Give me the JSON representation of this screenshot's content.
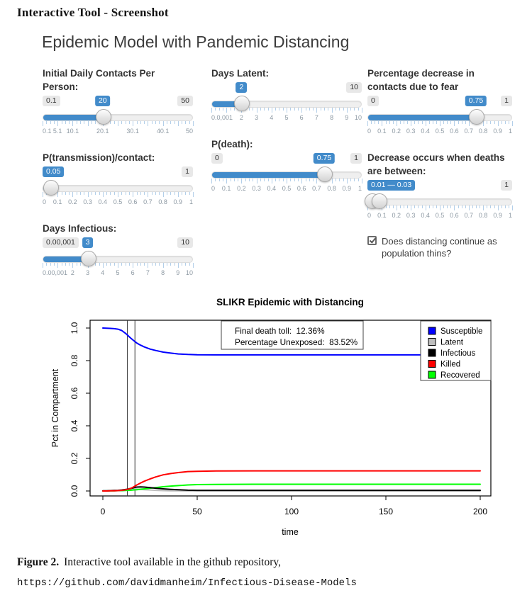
{
  "page": {
    "heading": "Interactive Tool - Screenshot",
    "caption": {
      "label": "Figure 2.",
      "text": "Interactive tool available in the github repository,",
      "url": "https://github.com/davidmanheim/Infectious-Disease-Models"
    }
  },
  "app": {
    "title": "Epidemic Model with Pandemic Distancing",
    "accent_color": "#428bca",
    "columns": [
      {
        "controls": [
          {
            "id": "initial-contacts",
            "type": "slider",
            "label": "Initial Daily Contacts Per Person:",
            "min_badge": "0.1",
            "max_badge": "50",
            "value_badge": "20",
            "value_pct": 40,
            "fill": [
              0,
              40
            ],
            "handles": [
              40
            ],
            "tick_labels": [
              [
                "0.1",
                0
              ],
              [
                "5.1",
                10
              ],
              [
                "10.1",
                20
              ],
              [
                "20.1",
                40
              ],
              [
                "30.1",
                60
              ],
              [
                "40.1",
                80
              ],
              [
                "50",
                100
              ]
            ]
          },
          {
            "id": "p-transmission",
            "type": "slider",
            "label": "P(transmission)/contact:",
            "min_badge": null,
            "max_badge": "1",
            "value_badge": "0.05",
            "value_pct": 5,
            "fill": [
              0,
              5
            ],
            "handles": [
              5
            ],
            "tick_labels": [
              [
                "0",
                0
              ],
              [
                "0.1",
                10
              ],
              [
                "0.2",
                20
              ],
              [
                "0.3",
                30
              ],
              [
                "0.4",
                40
              ],
              [
                "0.5",
                50
              ],
              [
                "0.6",
                60
              ],
              [
                "0.7",
                70
              ],
              [
                "0.8",
                80
              ],
              [
                "0.9",
                90
              ],
              [
                "1",
                100
              ]
            ]
          },
          {
            "id": "days-infectious",
            "type": "slider",
            "label": "Days Infectious:",
            "min_badge": "0.00,001",
            "max_badge": "10",
            "value_badge": "3",
            "value_pct": 30,
            "fill": [
              0,
              30
            ],
            "handles": [
              30
            ],
            "tick_labels": [
              [
                "0.00,001",
                0
              ],
              [
                "2",
                20
              ],
              [
                "3",
                30
              ],
              [
                "4",
                40
              ],
              [
                "5",
                50
              ],
              [
                "6",
                60
              ],
              [
                "7",
                70
              ],
              [
                "8",
                80
              ],
              [
                "9",
                90
              ],
              [
                "10",
                100
              ]
            ]
          }
        ]
      },
      {
        "controls": [
          {
            "id": "days-latent",
            "type": "slider",
            "label": "Days Latent:",
            "min_badge": null,
            "max_badge": "10",
            "value_badge": "2",
            "value_pct": 20,
            "fill": [
              0,
              20
            ],
            "handles": [
              20
            ],
            "tick_labels": [
              [
                "0.0,001",
                0
              ],
              [
                "2",
                20
              ],
              [
                "3",
                30
              ],
              [
                "4",
                40
              ],
              [
                "5",
                50
              ],
              [
                "6",
                60
              ],
              [
                "7",
                70
              ],
              [
                "8",
                80
              ],
              [
                "9",
                90
              ],
              [
                "10",
                100
              ]
            ]
          },
          {
            "id": "p-death",
            "type": "slider",
            "label": "P(death):",
            "min_badge": "0",
            "max_badge": "1",
            "value_badge": "0.75",
            "value_pct": 75,
            "fill": [
              0,
              75
            ],
            "handles": [
              75
            ],
            "tick_labels": [
              [
                "0",
                0
              ],
              [
                "0.1",
                10
              ],
              [
                "0.2",
                20
              ],
              [
                "0.3",
                30
              ],
              [
                "0.4",
                40
              ],
              [
                "0.5",
                50
              ],
              [
                "0.6",
                60
              ],
              [
                "0.7",
                70
              ],
              [
                "0.8",
                80
              ],
              [
                "0.9",
                90
              ],
              [
                "1",
                100
              ]
            ]
          }
        ]
      },
      {
        "controls": [
          {
            "id": "fear-decrease",
            "type": "slider",
            "label": "Percentage decrease in contacts due to fear",
            "min_badge": "0",
            "max_badge": "1",
            "value_badge": "0.75",
            "value_pct": 75,
            "fill": [
              0,
              75
            ],
            "handles": [
              75
            ],
            "tick_labels": [
              [
                "0",
                0
              ],
              [
                "0.1",
                10
              ],
              [
                "0.2",
                20
              ],
              [
                "0.3",
                30
              ],
              [
                "0.4",
                40
              ],
              [
                "0.5",
                50
              ],
              [
                "0.6",
                60
              ],
              [
                "0.7",
                70
              ],
              [
                "0.8",
                80
              ],
              [
                "0.9",
                90
              ],
              [
                "1",
                100
              ]
            ]
          },
          {
            "id": "death-range",
            "type": "range",
            "label": "Decrease occurs when deaths are between:",
            "min_badge": null,
            "max_badge": "1",
            "value_badge": "0.01 — 0.03",
            "value_pct": 0,
            "fill": [
              3,
              8
            ],
            "handles": [
              3,
              8
            ],
            "tick_labels": [
              [
                "0",
                0
              ],
              [
                "0.1",
                10
              ],
              [
                "0.2",
                20
              ],
              [
                "0.3",
                30
              ],
              [
                "0.4",
                40
              ],
              [
                "0.5",
                50
              ],
              [
                "0.6",
                60
              ],
              [
                "0.7",
                70
              ],
              [
                "0.8",
                80
              ],
              [
                "0.9",
                90
              ],
              [
                "1",
                100
              ]
            ]
          },
          {
            "id": "distancing-continues",
            "type": "checkbox",
            "checked": true,
            "label": "Does distancing continue as population thins?"
          }
        ]
      }
    ]
  },
  "chart_data": {
    "type": "line",
    "title": "SLIKR Epidemic with Distancing",
    "xlabel": "time",
    "ylabel": "Pct in Compartment",
    "xlim": [
      0,
      200
    ],
    "ylim": [
      0,
      1.0
    ],
    "xticks": [
      0,
      50,
      100,
      150,
      200
    ],
    "yticks": [
      0.0,
      0.2,
      0.4,
      0.6,
      0.8,
      1.0
    ],
    "grid": false,
    "legend_position": "top-right",
    "annotation": [
      "Final death toll:  12.36%",
      "Percentage Unexposed:  83.52%"
    ],
    "vlines": [
      13,
      17
    ],
    "x": [
      0,
      2,
      4,
      6,
      8,
      10,
      12,
      13,
      14,
      15,
      16,
      17,
      18,
      20,
      22,
      25,
      28,
      32,
      36,
      40,
      45,
      50,
      60,
      80,
      100,
      150,
      200
    ],
    "series": [
      {
        "name": "Susceptible",
        "color": "#0000ff",
        "values": [
          1.0,
          0.999,
          0.998,
          0.996,
          0.993,
          0.985,
          0.968,
          0.957,
          0.946,
          0.936,
          0.926,
          0.917,
          0.908,
          0.895,
          0.884,
          0.871,
          0.862,
          0.852,
          0.846,
          0.841,
          0.838,
          0.836,
          0.8353,
          0.8352,
          0.8352,
          0.8352,
          0.8352
        ]
      },
      {
        "name": "Latent",
        "color": "#bebebe",
        "values": [
          0.0,
          0.001,
          0.001,
          0.002,
          0.003,
          0.005,
          0.008,
          0.01,
          0.012,
          0.013,
          0.014,
          0.013,
          0.012,
          0.01,
          0.008,
          0.006,
          0.004,
          0.002,
          0.001,
          0.001,
          0.0,
          0.0,
          0.0,
          0.0,
          0.0,
          0.0,
          0.0
        ]
      },
      {
        "name": "Infectious",
        "color": "#000000",
        "values": [
          0.001,
          0.001,
          0.002,
          0.003,
          0.004,
          0.006,
          0.009,
          0.011,
          0.013,
          0.016,
          0.019,
          0.022,
          0.024,
          0.025,
          0.024,
          0.021,
          0.017,
          0.013,
          0.01,
          0.008,
          0.005,
          0.004,
          0.004,
          0.004,
          0.004,
          0.004,
          0.004
        ]
      },
      {
        "name": "Killed",
        "color": "#ff0000",
        "values": [
          0.0,
          0.0,
          0.001,
          0.001,
          0.002,
          0.004,
          0.007,
          0.01,
          0.013,
          0.017,
          0.023,
          0.03,
          0.037,
          0.049,
          0.06,
          0.074,
          0.086,
          0.099,
          0.107,
          0.113,
          0.119,
          0.121,
          0.1232,
          0.1236,
          0.1236,
          0.1236,
          0.1236
        ]
      },
      {
        "name": "Recovered",
        "color": "#00ff00",
        "values": [
          0.0,
          0.0,
          0.001,
          0.001,
          0.002,
          0.002,
          0.003,
          0.004,
          0.004,
          0.005,
          0.006,
          0.007,
          0.008,
          0.011,
          0.013,
          0.017,
          0.021,
          0.026,
          0.03,
          0.033,
          0.037,
          0.039,
          0.0406,
          0.0412,
          0.0412,
          0.0412,
          0.0412
        ]
      }
    ],
    "final_death_toll_pct": 12.36,
    "percentage_unexposed_pct": 83.52
  }
}
